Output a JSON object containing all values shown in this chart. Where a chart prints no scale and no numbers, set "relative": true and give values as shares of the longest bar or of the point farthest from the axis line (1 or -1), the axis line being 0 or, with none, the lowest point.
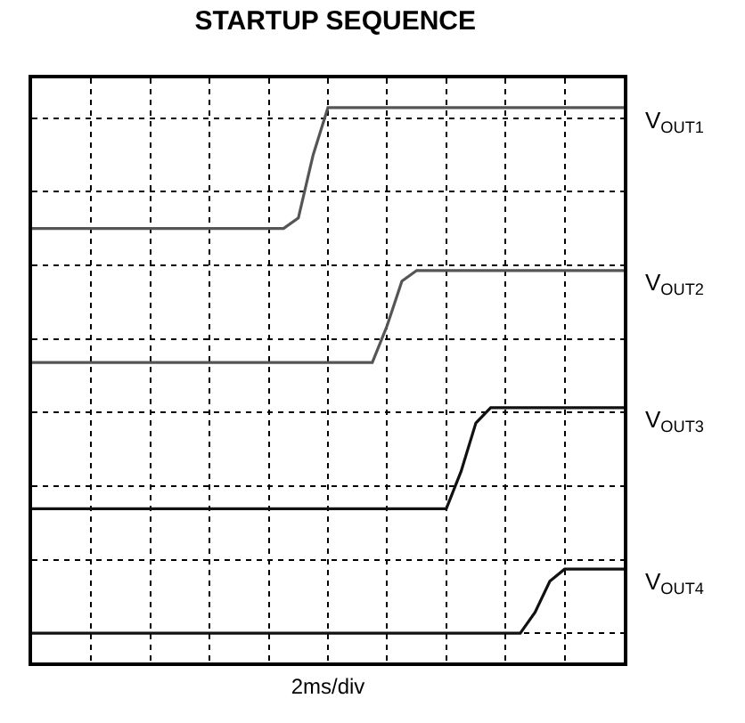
{
  "chart_data": {
    "type": "line",
    "title": "STARTUP SEQUENCE",
    "xlabel": "2ms/div",
    "relative": true,
    "grid": true,
    "legend": false,
    "categories": [
      null,
      null,
      null,
      null,
      null,
      null,
      null,
      null,
      null,
      null,
      null,
      null,
      null,
      null,
      null,
      null,
      null,
      null,
      null,
      null,
      null,
      null,
      null,
      null,
      null,
      null,
      null,
      null,
      null,
      null,
      null,
      null,
      null,
      null,
      null,
      null,
      null,
      null,
      null,
      null,
      null
    ],
    "series": [
      {
        "name": "V$_{OUT1}$",
        "color": "#555555",
        "values": [
          0.77,
          0.77,
          0.77,
          0.77,
          0.77,
          0.77,
          0.77,
          0.77,
          0.77,
          0.77,
          0.77,
          0.77,
          0.77,
          0.77,
          0.77,
          0.77,
          0.77,
          0.77,
          0.79,
          0.91,
          1.0,
          1.0,
          1.0,
          1.0,
          1.0,
          1.0,
          1.0,
          1.0,
          1.0,
          1.0,
          1.0,
          1.0,
          1.0,
          1.0,
          1.0,
          1.0,
          1.0,
          1.0,
          1.0,
          1.0,
          1.0
        ]
      },
      {
        "name": "V$_{OUT2}$",
        "color": "#555555",
        "values": [
          0.515,
          0.515,
          0.515,
          0.515,
          0.515,
          0.515,
          0.515,
          0.515,
          0.515,
          0.515,
          0.515,
          0.515,
          0.515,
          0.515,
          0.515,
          0.515,
          0.515,
          0.515,
          0.515,
          0.515,
          0.515,
          0.515,
          0.515,
          0.515,
          0.585,
          0.67,
          0.69,
          0.69,
          0.69,
          0.69,
          0.69,
          0.69,
          0.69,
          0.69,
          0.69,
          0.69,
          0.69,
          0.69,
          0.69,
          0.69,
          0.69
        ]
      },
      {
        "name": "V$_{OUT3}$",
        "color": "#111111",
        "values": [
          0.237,
          0.237,
          0.237,
          0.237,
          0.237,
          0.237,
          0.237,
          0.237,
          0.237,
          0.237,
          0.237,
          0.237,
          0.237,
          0.237,
          0.237,
          0.237,
          0.237,
          0.237,
          0.237,
          0.237,
          0.237,
          0.237,
          0.237,
          0.237,
          0.237,
          0.237,
          0.237,
          0.237,
          0.237,
          0.308,
          0.4,
          0.429,
          0.429,
          0.429,
          0.429,
          0.429,
          0.429,
          0.429,
          0.429,
          0.429,
          0.429
        ]
      },
      {
        "name": "V$_{OUT4}$",
        "color": "#111111",
        "values": [
          0,
          0,
          0,
          0,
          0,
          0,
          0,
          0,
          0,
          0,
          0,
          0,
          0,
          0,
          0,
          0,
          0,
          0,
          0,
          0,
          0,
          0,
          0,
          0,
          0,
          0,
          0,
          0,
          0,
          0,
          0,
          0,
          0,
          0,
          0.04,
          0.099,
          0.122,
          0.122,
          0.122,
          0.122,
          0.122
        ]
      }
    ]
  }
}
